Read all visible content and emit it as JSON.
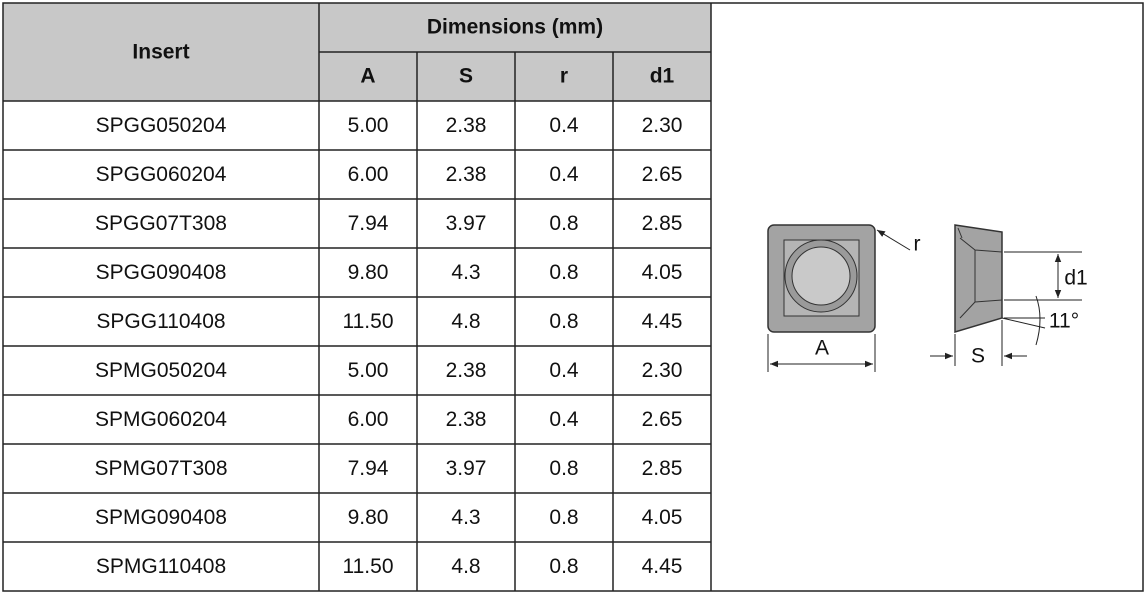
{
  "header": {
    "insert": "Insert",
    "dimensions": "Dimensions (mm)",
    "columns": [
      "A",
      "S",
      "r",
      "d1"
    ]
  },
  "rows": [
    [
      "SPGG050204",
      "5.00",
      "2.38",
      "0.4",
      "2.30"
    ],
    [
      "SPGG060204",
      "6.00",
      "2.38",
      "0.4",
      "2.65"
    ],
    [
      "SPGG07T308",
      "7.94",
      "3.97",
      "0.8",
      "2.85"
    ],
    [
      "SPGG090408",
      "9.80",
      "4.3",
      "0.8",
      "4.05"
    ],
    [
      "SPGG110408",
      "11.50",
      "4.8",
      "0.8",
      "4.45"
    ],
    [
      "SPMG050204",
      "5.00",
      "2.38",
      "0.4",
      "2.30"
    ],
    [
      "SPMG060204",
      "6.00",
      "2.38",
      "0.4",
      "2.65"
    ],
    [
      "SPMG07T308",
      "7.94",
      "3.97",
      "0.8",
      "2.85"
    ],
    [
      "SPMG090408",
      "9.80",
      "4.3",
      "0.8",
      "4.05"
    ],
    [
      "SPMG110408",
      "11.50",
      "4.8",
      "0.8",
      "4.45"
    ]
  ],
  "diagram": {
    "r": "r",
    "A": "A",
    "d1": "d1",
    "S": "S",
    "angle": "11°"
  }
}
